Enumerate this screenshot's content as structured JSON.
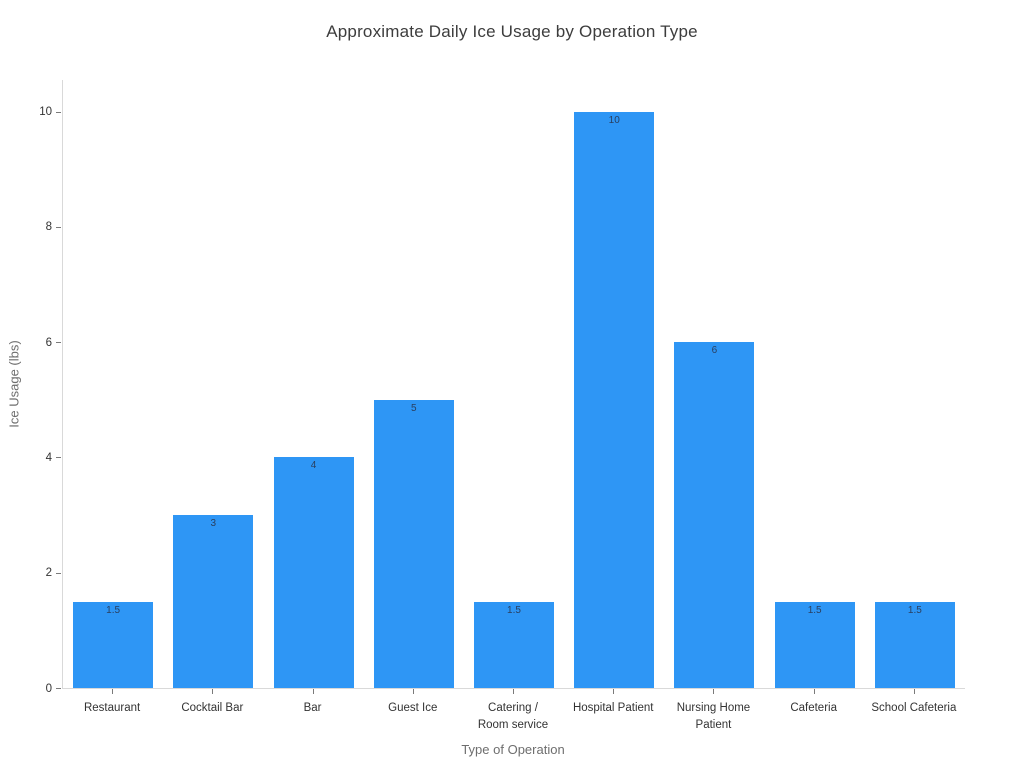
{
  "chart_data": {
    "type": "bar",
    "title": "Approximate Daily Ice Usage by Operation Type",
    "xlabel": "Type of Operation",
    "ylabel": "Ice Usage (lbs)",
    "categories": [
      "Restaurant",
      "Cocktail Bar",
      "Bar",
      "Guest Ice",
      "Catering /\nRoom service",
      "Hospital Patient",
      "Nursing Home\nPatient",
      "Cafeteria",
      "School Cafeteria"
    ],
    "values": [
      1.5,
      3,
      4,
      5,
      1.5,
      10,
      6,
      1.5,
      1.5
    ],
    "bar_labels": [
      "1.5",
      "3",
      "4",
      "5",
      "1.5",
      "10",
      "6",
      "1.5",
      "1.5"
    ],
    "yticks": [
      0,
      2,
      4,
      6,
      8,
      10
    ],
    "ylim": [
      0,
      10.55
    ],
    "grid": false,
    "legend": "none",
    "colors": {
      "bar": "#2e96f5",
      "bar_label": "#2a3f5f",
      "title": "#3d3d3d",
      "axis_title": "#6e6e6e",
      "tick_label": "#333333",
      "spine": "#d9d9d9",
      "tick_mark": "#7a7a7a",
      "background": "#ffffff"
    }
  }
}
